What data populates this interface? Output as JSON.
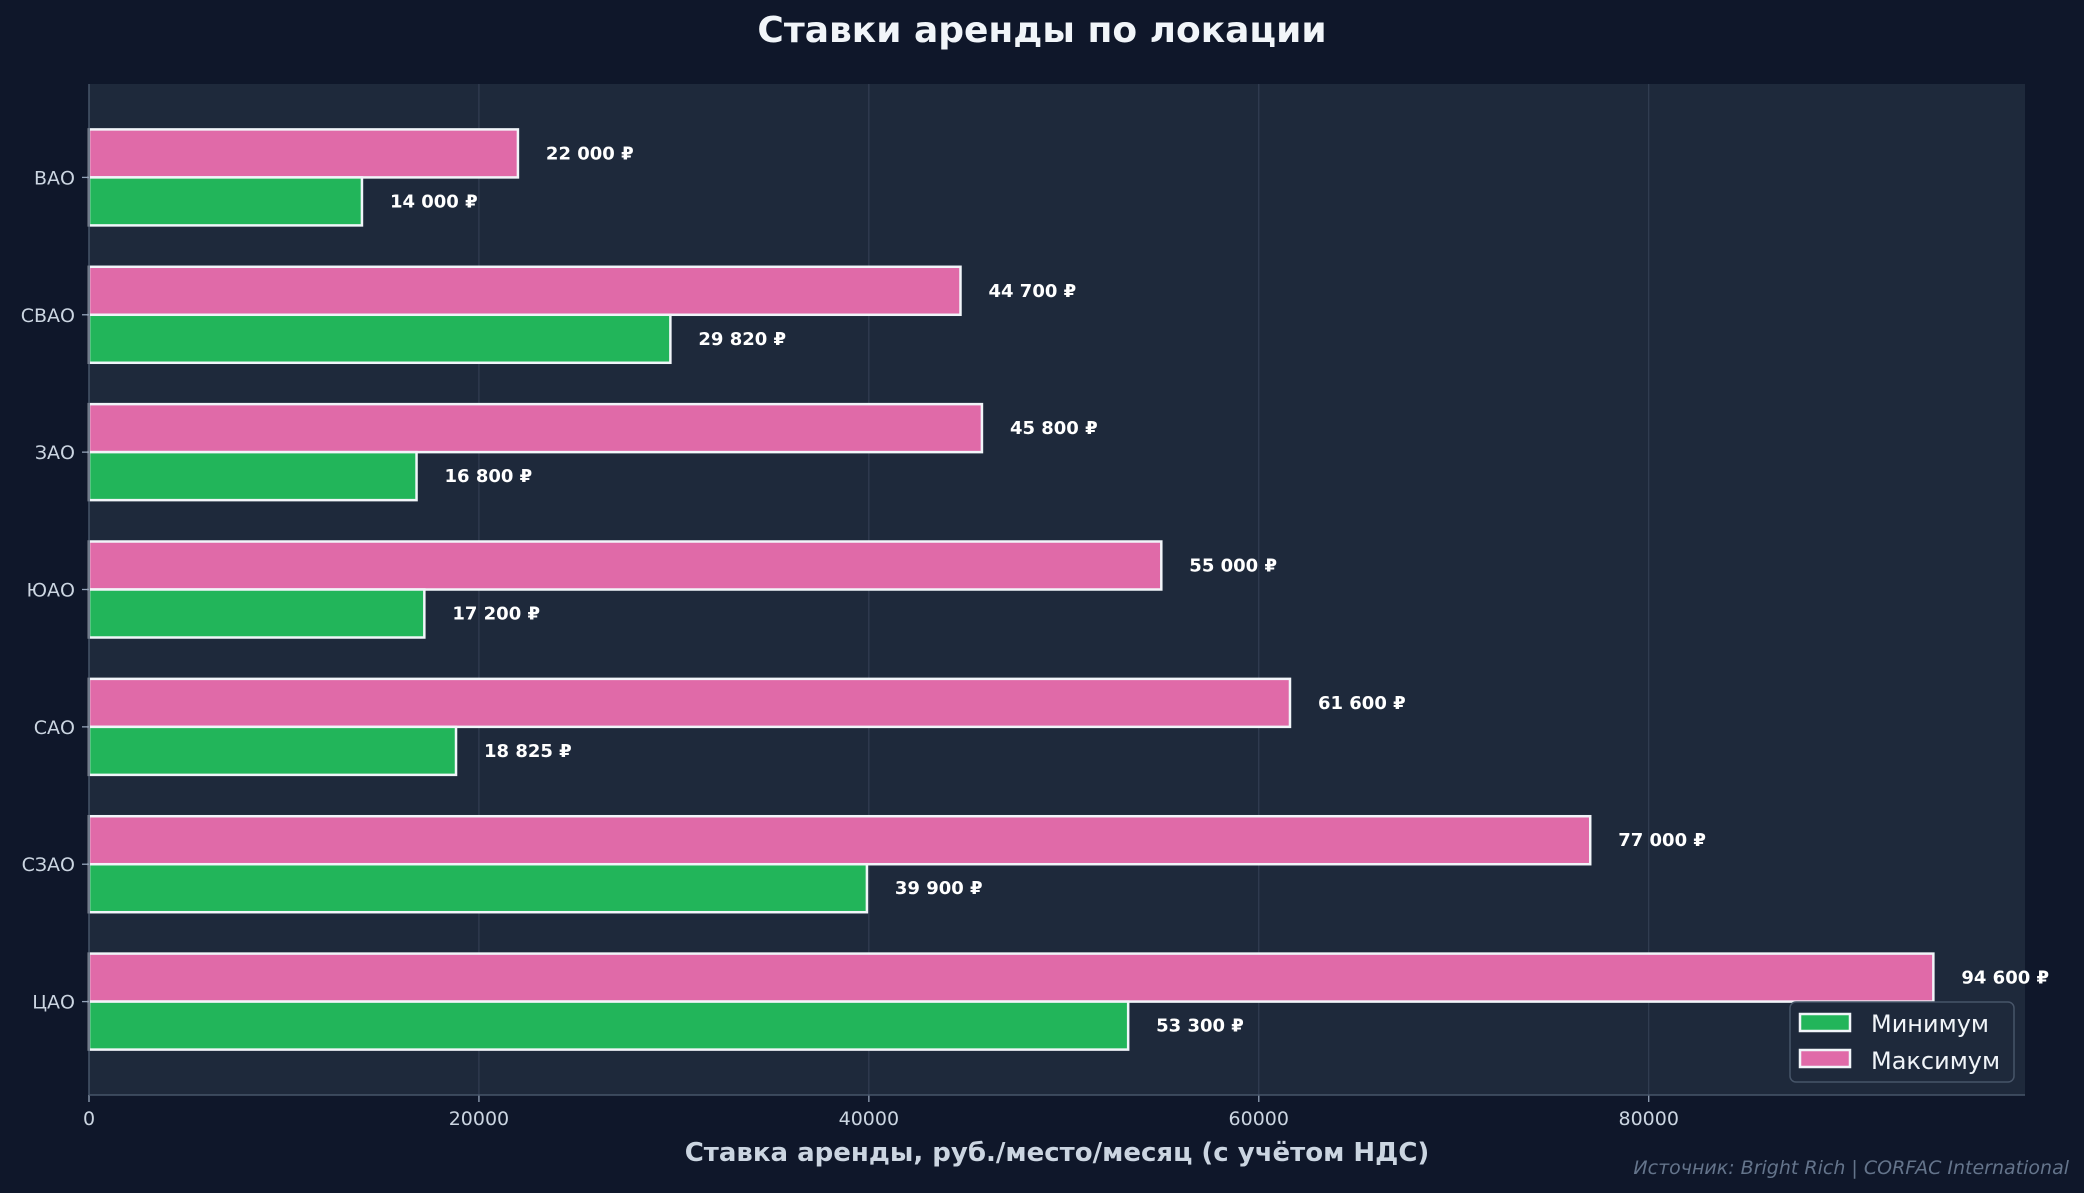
{
  "chart_data": {
    "type": "bar",
    "orientation": "horizontal",
    "title": "Ставки аренды по локации",
    "xlabel": "Ставка аренды, руб./место/месяц (с учётом НДС)",
    "ylabel": "",
    "categories": [
      "ЦАО",
      "СЗАО",
      "САО",
      "ЮАО",
      "ЗАО",
      "СВАО",
      "ВАО"
    ],
    "series": [
      {
        "name": "Минимум",
        "color": "#22b55a",
        "values": [
          53300,
          39900,
          18825,
          17200,
          16800,
          29820,
          14000
        ],
        "labels": [
          "53 300 ₽",
          "39 900 ₽",
          "18 825 ₽",
          "17 200 ₽",
          "16 800 ₽",
          "29 820 ₽",
          "14 000 ₽"
        ]
      },
      {
        "name": "Максимум",
        "color": "#e06aa8",
        "values": [
          94600,
          77000,
          61600,
          55000,
          45800,
          44700,
          22000
        ],
        "labels": [
          "94 600 ₽",
          "77 000 ₽",
          "61 600 ₽",
          "55 000 ₽",
          "45 800 ₽",
          "44 700 ₽",
          "22 000 ₽"
        ]
      }
    ],
    "xlim": [
      0,
      99300
    ],
    "xticks": [
      0,
      20000,
      40000,
      60000,
      80000
    ],
    "xtick_labels": [
      "0",
      "20000",
      "40000",
      "60000",
      "80000"
    ],
    "grid": "vertical",
    "legend": "bottom-right"
  },
  "source": "Источник: Bright Rich | CORFAC International"
}
